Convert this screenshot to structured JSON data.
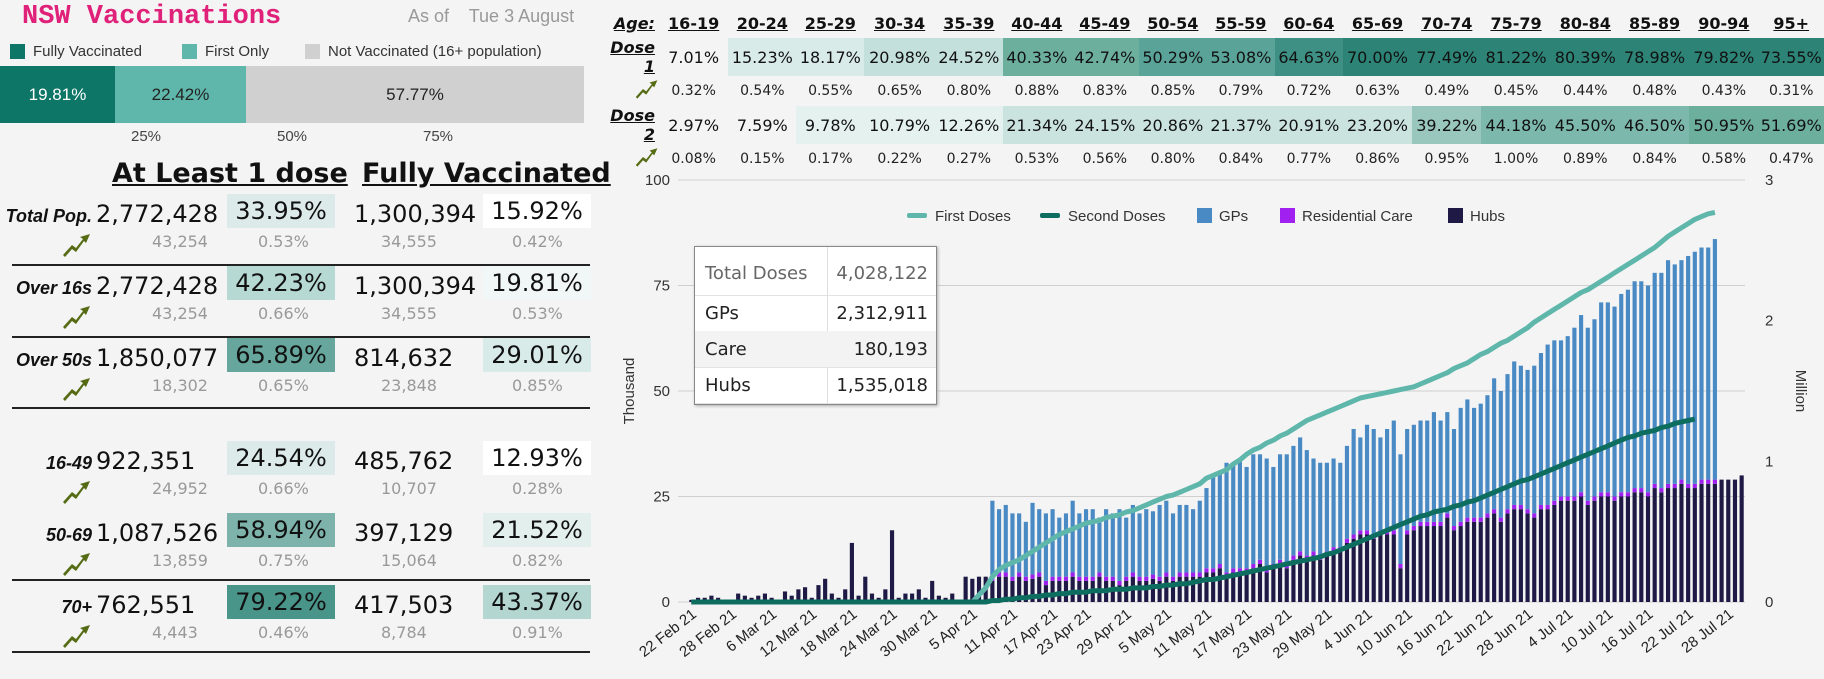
{
  "header": {
    "title": "NSW Vaccinations",
    "as_of_label": "As of",
    "as_of_date": "Tue 3 August"
  },
  "status_legend": {
    "items": [
      {
        "label": "Fully Vaccinated",
        "color": "#0d7667"
      },
      {
        "label": "First Only",
        "color": "#5fb7ab"
      },
      {
        "label": "Not Vaccinated (16+ population)",
        "color": "#d0d0d0"
      }
    ]
  },
  "status_bar": {
    "fully_pct": "19.81%",
    "first_only_pct": "22.42%",
    "not_vacc_pct": "57.77%",
    "fully": 19.81,
    "first_only": 22.42,
    "not_vacc": 57.77,
    "ticks": [
      "25%",
      "50%",
      "75%"
    ]
  },
  "summary": {
    "col1_header": "At Least 1 dose",
    "col2_header": "Fully Vaccinated",
    "rows": [
      {
        "label": "Total Pop.",
        "dose1": "2,772,428",
        "dose1_pct": "33.95%",
        "dose1_delta": "43,254",
        "dose1_delta_pct": "0.53%",
        "full": "1,300,394",
        "full_pct": "15.92%",
        "full_delta": "34,555",
        "full_delta_pct": "0.42%",
        "c1": "#dcebe9",
        "c2": "#ffffff"
      },
      {
        "label": "Over 16s",
        "dose1": "2,772,428",
        "dose1_pct": "42.23%",
        "dose1_delta": "43,254",
        "dose1_delta_pct": "0.66%",
        "full": "1,300,394",
        "full_pct": "19.81%",
        "full_delta": "34,555",
        "full_delta_pct": "0.53%",
        "c1": "#b6d9d4",
        "c2": "#f1f7f6"
      },
      {
        "label": "Over 50s",
        "dose1": "1,850,077",
        "dose1_pct": "65.89%",
        "dose1_delta": "18,302",
        "dose1_delta_pct": "0.65%",
        "full": "814,632",
        "full_pct": "29.01%",
        "full_delta": "23,848",
        "full_delta_pct": "0.85%",
        "c1": "#66a69c",
        "c2": "#d9ebe8"
      },
      {
        "label": "16-49",
        "dose1": "922,351",
        "dose1_pct": "24.54%",
        "dose1_delta": "24,952",
        "dose1_delta_pct": "0.66%",
        "full": "485,762",
        "full_pct": "12.93%",
        "full_delta": "10,707",
        "full_delta_pct": "0.28%",
        "c1": "#dcebe9",
        "c2": "#ffffff"
      },
      {
        "label": "50-69",
        "dose1": "1,087,526",
        "dose1_pct": "58.94%",
        "dose1_delta": "13,859",
        "dose1_delta_pct": "0.75%",
        "full": "397,129",
        "full_pct": "21.52%",
        "full_delta": "15,064",
        "full_delta_pct": "0.82%",
        "c1": "#7db3aa",
        "c2": "#e2efed"
      },
      {
        "label": "70+",
        "dose1": "762,551",
        "dose1_pct": "79.22%",
        "dose1_delta": "4,443",
        "dose1_delta_pct": "0.46%",
        "full": "417,503",
        "full_pct": "43.37%",
        "full_delta": "8,784",
        "full_delta_pct": "0.91%",
        "c1": "#4a958a",
        "c2": "#b3d6d1"
      }
    ]
  },
  "age_table": {
    "age_label": "Age:",
    "dose1_label": "Dose 1",
    "dose2_label": "Dose 2",
    "ages": [
      "16-19",
      "20-24",
      "25-29",
      "30-34",
      "35-39",
      "40-44",
      "45-49",
      "50-54",
      "55-59",
      "60-64",
      "65-69",
      "70-74",
      "75-79",
      "80-84",
      "85-89",
      "90-94",
      "95+"
    ],
    "dose1": [
      "7.01%",
      "15.23%",
      "18.17%",
      "20.98%",
      "24.52%",
      "40.33%",
      "42.74%",
      "50.29%",
      "53.08%",
      "64.63%",
      "70.00%",
      "77.49%",
      "81.22%",
      "80.39%",
      "78.98%",
      "79.82%",
      "73.55%"
    ],
    "dose1_change": [
      "0.32%",
      "0.54%",
      "0.55%",
      "0.65%",
      "0.80%",
      "0.88%",
      "0.83%",
      "0.85%",
      "0.79%",
      "0.72%",
      "0.63%",
      "0.49%",
      "0.45%",
      "0.44%",
      "0.48%",
      "0.43%",
      "0.31%"
    ],
    "dose2": [
      "2.97%",
      "7.59%",
      "9.78%",
      "10.79%",
      "12.26%",
      "21.34%",
      "24.15%",
      "20.86%",
      "21.37%",
      "20.91%",
      "23.20%",
      "39.22%",
      "44.18%",
      "45.50%",
      "46.50%",
      "50.95%",
      "51.69%"
    ],
    "dose2_change": [
      "0.08%",
      "0.15%",
      "0.17%",
      "0.22%",
      "0.27%",
      "0.53%",
      "0.56%",
      "0.80%",
      "0.84%",
      "0.77%",
      "0.86%",
      "0.95%",
      "1.00%",
      "0.89%",
      "0.84%",
      "0.58%",
      "0.47%"
    ]
  },
  "totals_box": {
    "rows": [
      {
        "label": "Total Doses",
        "value": "4,028,122"
      },
      {
        "label": "GPs",
        "value": "2,312,911"
      },
      {
        "label": "Care",
        "value": "180,193"
      },
      {
        "label": "Hubs",
        "value": "1,535,018"
      }
    ]
  },
  "chart_data": {
    "type": "bar",
    "ylabel_left": "Thousand",
    "ylabel_right": "Million",
    "ylim_left": [
      0,
      100
    ],
    "ylim_right": [
      0,
      3
    ],
    "left_ticks": [
      "0",
      "25",
      "50",
      "75",
      "100"
    ],
    "right_ticks": [
      "0",
      "1",
      "2",
      "3"
    ],
    "x_tick_labels": [
      "22 Feb 21",
      "28 Feb 21",
      "6 Mar 21",
      "12 Mar 21",
      "18 Mar 21",
      "24 Mar 21",
      "30 Mar 21",
      "5 Apr 21",
      "11 Apr 21",
      "17 Apr 21",
      "23 Apr 21",
      "29 Apr 21",
      "5 May 21",
      "11 May 21",
      "17 May 21",
      "23 May 21",
      "29 May 21",
      "4 Jun 21",
      "10 Jun 21",
      "16 Jun 21",
      "22 Jun 21",
      "28 Jun 21",
      "4 Jul 21",
      "10 Jul 21",
      "16 Jul 21",
      "22 Jul 21",
      "28 Jul 21"
    ],
    "legend": [
      {
        "name": "First Doses",
        "color": "#5fb7ab",
        "kind": "line"
      },
      {
        "name": "Second Doses",
        "color": "#0d6e60",
        "kind": "line"
      },
      {
        "name": "GPs",
        "color": "#4a8ac4",
        "kind": "bar"
      },
      {
        "name": "Residential Care",
        "color": "#a020f0",
        "kind": "bar"
      },
      {
        "name": "Hubs",
        "color": "#1e1a45",
        "kind": "bar"
      }
    ],
    "daily_start": "22 Feb 21",
    "hubs_thousand": [
      0.5,
      1,
      1,
      1.5,
      1,
      0.5,
      0.5,
      2,
      1.5,
      1,
      1.5,
      2,
      1,
      0.5,
      2.5,
      1.5,
      3,
      3.5,
      1,
      4,
      5.5,
      2,
      1,
      3,
      14,
      1.5,
      6,
      2,
      1,
      3,
      17,
      1,
      2,
      2,
      3,
      1,
      5,
      1.5,
      1,
      2,
      0.5,
      6,
      5.5,
      6,
      6,
      5,
      6,
      6,
      5,
      6,
      5,
      5.5,
      6,
      4,
      5,
      5,
      5,
      6,
      5,
      5,
      5,
      6,
      5,
      5,
      4,
      5,
      6,
      5,
      5,
      5.5,
      5,
      6,
      5,
      6,
      6,
      6,
      6,
      7,
      7,
      8,
      6,
      7,
      7,
      7,
      8,
      9,
      7,
      8,
      9,
      8,
      10,
      11,
      10,
      11,
      10,
      11,
      12,
      12,
      14,
      15,
      16,
      16,
      15,
      16,
      16,
      16,
      8,
      16,
      17,
      18,
      18,
      18,
      18,
      20,
      17,
      18,
      19,
      19,
      19,
      20,
      21,
      19,
      21,
      22,
      22,
      21,
      20,
      22,
      22,
      23,
      24,
      24,
      24,
      25,
      23,
      24,
      25,
      25,
      24,
      25,
      25,
      26,
      26,
      25,
      27,
      26,
      27,
      27,
      28,
      27,
      27,
      28,
      28,
      28,
      29,
      29,
      29,
      30
    ],
    "gps_thousand": [
      0,
      0,
      0,
      0,
      0,
      0,
      0,
      0,
      0,
      0,
      0,
      0,
      0,
      0,
      0,
      0,
      0,
      0,
      0,
      0,
      0,
      0,
      0,
      0,
      0,
      0,
      0,
      0,
      0,
      0,
      0,
      0,
      0,
      0,
      0,
      0,
      0,
      0,
      0,
      0,
      0,
      0,
      0,
      0,
      0,
      18,
      15,
      16,
      15,
      14,
      13,
      17,
      15,
      16,
      16,
      14,
      15,
      17,
      15,
      16,
      16,
      13,
      16,
      15,
      17,
      14,
      16,
      15,
      16,
      15,
      17,
      17,
      15,
      16,
      16,
      15,
      17,
      19,
      22,
      22,
      26,
      25,
      26,
      24,
      26,
      25,
      26,
      23,
      25,
      26,
      26,
      27,
      25,
      22,
      22,
      21,
      21,
      20,
      22,
      25,
      22,
      25,
      25,
      22,
      24,
      26,
      26,
      24,
      24,
      24,
      24,
      26,
      24,
      24,
      23,
      27,
      28,
      26,
      27,
      28,
      31,
      30,
      32,
      34,
      33,
      33,
      35,
      36,
      38,
      38,
      37,
      38,
      40,
      42,
      41,
      42,
      45,
      45,
      45,
      47,
      48,
      49,
      49,
      49,
      50,
      51,
      53,
      52,
      52,
      54,
      55,
      55,
      55,
      57
    ],
    "care_thousand": [
      0,
      0,
      0,
      0,
      0,
      0,
      0,
      0,
      0,
      0,
      0,
      0,
      0,
      0,
      0,
      0,
      0,
      0,
      0,
      0,
      0,
      0,
      0,
      0,
      0,
      0,
      0,
      0,
      0,
      0,
      0,
      0,
      0,
      0,
      0,
      0,
      0,
      0,
      0,
      0,
      0,
      0,
      0,
      0,
      0,
      1,
      1,
      1,
      1,
      1,
      1,
      1,
      1,
      1,
      1,
      1,
      1,
      1,
      1,
      1,
      1,
      1,
      1,
      1,
      1,
      1,
      1,
      1,
      1,
      1,
      1,
      1,
      1,
      1,
      1,
      1,
      1,
      1,
      1,
      1,
      1,
      1,
      1,
      1,
      1,
      1,
      1,
      1,
      1,
      1,
      1,
      1,
      1,
      1,
      1,
      1,
      1,
      1,
      1,
      1,
      1,
      1,
      1,
      1,
      1,
      1,
      1,
      1,
      1,
      1,
      1,
      1,
      1,
      1,
      1,
      1,
      1,
      1,
      1,
      1,
      1,
      1,
      1,
      1,
      1,
      1,
      1,
      1,
      1,
      1,
      1,
      1,
      1,
      1,
      1,
      1,
      1,
      1,
      1,
      1,
      1,
      1,
      1,
      1,
      1,
      1,
      1,
      1,
      1,
      1,
      1,
      1,
      1,
      1
    ],
    "first_doses_million": [
      0,
      0,
      0,
      0,
      0,
      0,
      0,
      0,
      0,
      0,
      0,
      0,
      0,
      0,
      0,
      0,
      0,
      0,
      0,
      0,
      0,
      0,
      0,
      0,
      0,
      0,
      0,
      0,
      0,
      0,
      0,
      0,
      0,
      0,
      0,
      0,
      0,
      0,
      0,
      0,
      0,
      0,
      0,
      0.05,
      0.1,
      0.18,
      0.23,
      0.26,
      0.28,
      0.3,
      0.33,
      0.36,
      0.39,
      0.42,
      0.45,
      0.48,
      0.5,
      0.52,
      0.54,
      0.56,
      0.57,
      0.58,
      0.6,
      0.61,
      0.62,
      0.64,
      0.65,
      0.67,
      0.69,
      0.71,
      0.73,
      0.75,
      0.76,
      0.78,
      0.8,
      0.82,
      0.84,
      0.88,
      0.9,
      0.92,
      0.94,
      0.98,
      1.01,
      1.05,
      1.08,
      1.1,
      1.13,
      1.15,
      1.18,
      1.2,
      1.23,
      1.26,
      1.29,
      1.31,
      1.33,
      1.35,
      1.37,
      1.39,
      1.41,
      1.43,
      1.45,
      1.46,
      1.47,
      1.48,
      1.49,
      1.5,
      1.51,
      1.52,
      1.53,
      1.55,
      1.57,
      1.59,
      1.61,
      1.63,
      1.66,
      1.68,
      1.7,
      1.73,
      1.76,
      1.78,
      1.81,
      1.84,
      1.86,
      1.89,
      1.92,
      1.95,
      1.99,
      2.02,
      2.05,
      2.08,
      2.11,
      2.14,
      2.17,
      2.2,
      2.22,
      2.25,
      2.28,
      2.31,
      2.34,
      2.37,
      2.4,
      2.43,
      2.46,
      2.49,
      2.52,
      2.56,
      2.6,
      2.63,
      2.66,
      2.69,
      2.72,
      2.74,
      2.76,
      2.77
    ],
    "second_doses_million": [
      0,
      0,
      0,
      0,
      0,
      0,
      0,
      0,
      0,
      0,
      0,
      0,
      0,
      0,
      0,
      0,
      0,
      0,
      0,
      0,
      0,
      0,
      0,
      0,
      0,
      0,
      0,
      0,
      0,
      0,
      0,
      0,
      0,
      0,
      0,
      0,
      0,
      0,
      0,
      0,
      0,
      0,
      0,
      0,
      0,
      0.01,
      0.01,
      0.02,
      0.02,
      0.03,
      0.03,
      0.04,
      0.04,
      0.05,
      0.05,
      0.06,
      0.06,
      0.07,
      0.07,
      0.07,
      0.08,
      0.08,
      0.08,
      0.09,
      0.09,
      0.09,
      0.1,
      0.1,
      0.1,
      0.11,
      0.11,
      0.12,
      0.12,
      0.13,
      0.13,
      0.14,
      0.15,
      0.16,
      0.16,
      0.17,
      0.18,
      0.19,
      0.2,
      0.21,
      0.22,
      0.23,
      0.24,
      0.25,
      0.26,
      0.27,
      0.28,
      0.29,
      0.3,
      0.31,
      0.32,
      0.34,
      0.35,
      0.37,
      0.39,
      0.41,
      0.43,
      0.45,
      0.47,
      0.49,
      0.51,
      0.53,
      0.55,
      0.57,
      0.59,
      0.61,
      0.62,
      0.64,
      0.65,
      0.66,
      0.68,
      0.69,
      0.71,
      0.72,
      0.74,
      0.76,
      0.78,
      0.8,
      0.82,
      0.84,
      0.86,
      0.87,
      0.89,
      0.91,
      0.93,
      0.95,
      0.97,
      0.99,
      1.01,
      1.03,
      1.05,
      1.07,
      1.09,
      1.11,
      1.13,
      1.15,
      1.17,
      1.18,
      1.2,
      1.21,
      1.22,
      1.24,
      1.25,
      1.27,
      1.28,
      1.29,
      1.3
    ]
  }
}
